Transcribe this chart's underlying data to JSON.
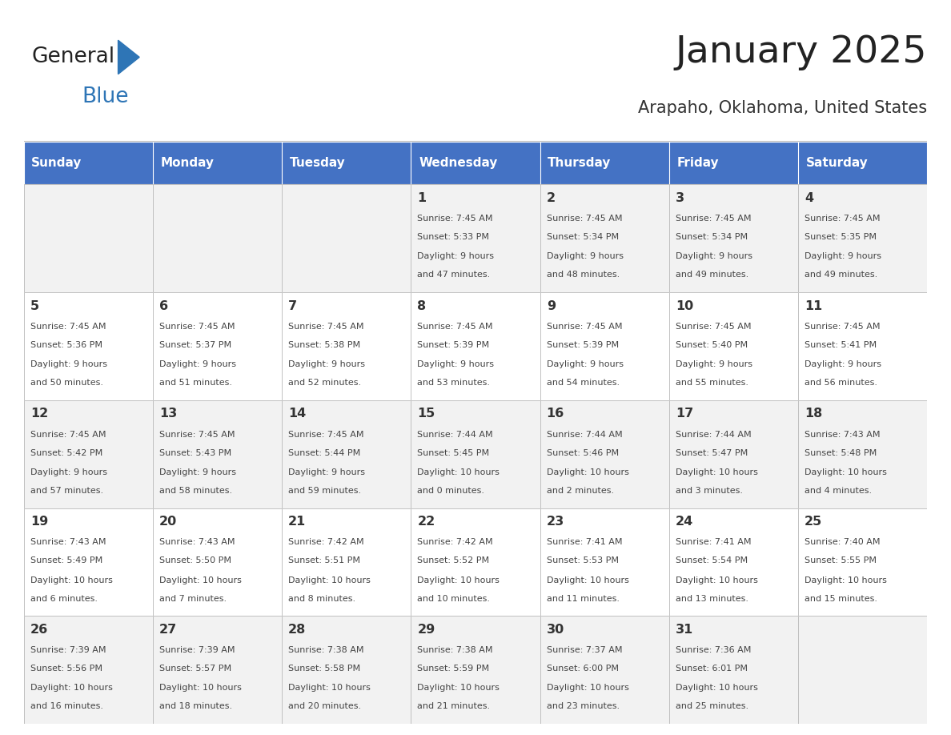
{
  "title": "January 2025",
  "subtitle": "Arapaho, Oklahoma, United States",
  "days_of_week": [
    "Sunday",
    "Monday",
    "Tuesday",
    "Wednesday",
    "Thursday",
    "Friday",
    "Saturday"
  ],
  "header_bg": "#4472C4",
  "header_text": "#FFFFFF",
  "row_bg_odd": "#F2F2F2",
  "row_bg_even": "#FFFFFF",
  "cell_border": "#AAAAAA",
  "day_number_color": "#333333",
  "data_text_color": "#444444",
  "title_color": "#222222",
  "subtitle_color": "#333333",
  "logo_general_color": "#222222",
  "logo_blue_color": "#2E75B6",
  "calendar": [
    [
      null,
      null,
      null,
      {
        "day": 1,
        "sunrise": "7:45 AM",
        "sunset": "5:33 PM",
        "daylight": "9 hours",
        "daylight2": "and 47 minutes."
      },
      {
        "day": 2,
        "sunrise": "7:45 AM",
        "sunset": "5:34 PM",
        "daylight": "9 hours",
        "daylight2": "and 48 minutes."
      },
      {
        "day": 3,
        "sunrise": "7:45 AM",
        "sunset": "5:34 PM",
        "daylight": "9 hours",
        "daylight2": "and 49 minutes."
      },
      {
        "day": 4,
        "sunrise": "7:45 AM",
        "sunset": "5:35 PM",
        "daylight": "9 hours",
        "daylight2": "and 49 minutes."
      }
    ],
    [
      {
        "day": 5,
        "sunrise": "7:45 AM",
        "sunset": "5:36 PM",
        "daylight": "9 hours",
        "daylight2": "and 50 minutes."
      },
      {
        "day": 6,
        "sunrise": "7:45 AM",
        "sunset": "5:37 PM",
        "daylight": "9 hours",
        "daylight2": "and 51 minutes."
      },
      {
        "day": 7,
        "sunrise": "7:45 AM",
        "sunset": "5:38 PM",
        "daylight": "9 hours",
        "daylight2": "and 52 minutes."
      },
      {
        "day": 8,
        "sunrise": "7:45 AM",
        "sunset": "5:39 PM",
        "daylight": "9 hours",
        "daylight2": "and 53 minutes."
      },
      {
        "day": 9,
        "sunrise": "7:45 AM",
        "sunset": "5:39 PM",
        "daylight": "9 hours",
        "daylight2": "and 54 minutes."
      },
      {
        "day": 10,
        "sunrise": "7:45 AM",
        "sunset": "5:40 PM",
        "daylight": "9 hours",
        "daylight2": "and 55 minutes."
      },
      {
        "day": 11,
        "sunrise": "7:45 AM",
        "sunset": "5:41 PM",
        "daylight": "9 hours",
        "daylight2": "and 56 minutes."
      }
    ],
    [
      {
        "day": 12,
        "sunrise": "7:45 AM",
        "sunset": "5:42 PM",
        "daylight": "9 hours",
        "daylight2": "and 57 minutes."
      },
      {
        "day": 13,
        "sunrise": "7:45 AM",
        "sunset": "5:43 PM",
        "daylight": "9 hours",
        "daylight2": "and 58 minutes."
      },
      {
        "day": 14,
        "sunrise": "7:45 AM",
        "sunset": "5:44 PM",
        "daylight": "9 hours",
        "daylight2": "and 59 minutes."
      },
      {
        "day": 15,
        "sunrise": "7:44 AM",
        "sunset": "5:45 PM",
        "daylight": "10 hours",
        "daylight2": "and 0 minutes."
      },
      {
        "day": 16,
        "sunrise": "7:44 AM",
        "sunset": "5:46 PM",
        "daylight": "10 hours",
        "daylight2": "and 2 minutes."
      },
      {
        "day": 17,
        "sunrise": "7:44 AM",
        "sunset": "5:47 PM",
        "daylight": "10 hours",
        "daylight2": "and 3 minutes."
      },
      {
        "day": 18,
        "sunrise": "7:43 AM",
        "sunset": "5:48 PM",
        "daylight": "10 hours",
        "daylight2": "and 4 minutes."
      }
    ],
    [
      {
        "day": 19,
        "sunrise": "7:43 AM",
        "sunset": "5:49 PM",
        "daylight": "10 hours",
        "daylight2": "and 6 minutes."
      },
      {
        "day": 20,
        "sunrise": "7:43 AM",
        "sunset": "5:50 PM",
        "daylight": "10 hours",
        "daylight2": "and 7 minutes."
      },
      {
        "day": 21,
        "sunrise": "7:42 AM",
        "sunset": "5:51 PM",
        "daylight": "10 hours",
        "daylight2": "and 8 minutes."
      },
      {
        "day": 22,
        "sunrise": "7:42 AM",
        "sunset": "5:52 PM",
        "daylight": "10 hours",
        "daylight2": "and 10 minutes."
      },
      {
        "day": 23,
        "sunrise": "7:41 AM",
        "sunset": "5:53 PM",
        "daylight": "10 hours",
        "daylight2": "and 11 minutes."
      },
      {
        "day": 24,
        "sunrise": "7:41 AM",
        "sunset": "5:54 PM",
        "daylight": "10 hours",
        "daylight2": "and 13 minutes."
      },
      {
        "day": 25,
        "sunrise": "7:40 AM",
        "sunset": "5:55 PM",
        "daylight": "10 hours",
        "daylight2": "and 15 minutes."
      }
    ],
    [
      {
        "day": 26,
        "sunrise": "7:39 AM",
        "sunset": "5:56 PM",
        "daylight": "10 hours",
        "daylight2": "and 16 minutes."
      },
      {
        "day": 27,
        "sunrise": "7:39 AM",
        "sunset": "5:57 PM",
        "daylight": "10 hours",
        "daylight2": "and 18 minutes."
      },
      {
        "day": 28,
        "sunrise": "7:38 AM",
        "sunset": "5:58 PM",
        "daylight": "10 hours",
        "daylight2": "and 20 minutes."
      },
      {
        "day": 29,
        "sunrise": "7:38 AM",
        "sunset": "5:59 PM",
        "daylight": "10 hours",
        "daylight2": "and 21 minutes."
      },
      {
        "day": 30,
        "sunrise": "7:37 AM",
        "sunset": "6:00 PM",
        "daylight": "10 hours",
        "daylight2": "and 23 minutes."
      },
      {
        "day": 31,
        "sunrise": "7:36 AM",
        "sunset": "6:01 PM",
        "daylight": "10 hours",
        "daylight2": "and 25 minutes."
      },
      null
    ]
  ]
}
